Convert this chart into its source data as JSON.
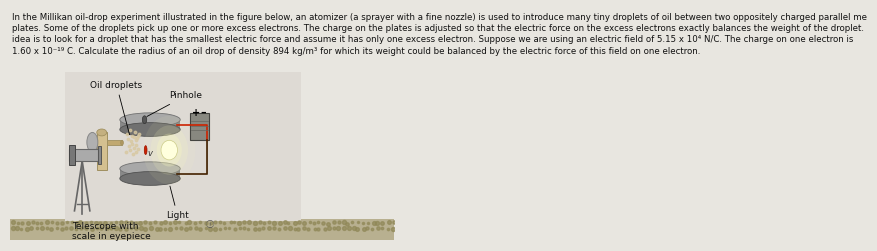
{
  "background_color": "#e8e6e0",
  "text_lines": [
    "In the Millikan oil-drop experiment illustrated in the figure below, an atomizer (a sprayer with a fine nozzle) is used to introduce many tiny droplets of oil between two oppositely charged parallel me",
    "plates. Some of the droplets pick up one or more excess electrons. The charge on the plates is adjusted so that the electric force on the excess electrons exactly balances the weight of the droplet.",
    "idea is to look for a droplet that has the smallest electric force and assume it has only one excess electron. Suppose we are using an electric field of 5.15 x 10⁴ N/C. The charge on one electron is",
    "1.60 x 10⁻¹⁹ C. Calculate the radius of an oil drop of density 894 kg/m³ for which its weight could be balanced by the electric force of this field on one electron."
  ],
  "label_oil_droplets": "Oil droplets",
  "label_pinhole": "Pinhole",
  "label_telescope": "Telescope with\nscale in eyepiece",
  "label_light": "Light",
  "text_color": "#111111",
  "font_size_text": 6.2,
  "font_size_label": 6.5,
  "fig_width": 7.0,
  "fig_height": 2.35,
  "plate_color_top": "#909090",
  "plate_color_mid": "#808080",
  "plate_color_rim": "#a0a0a0",
  "plate_color_dark": "#606060",
  "wire_red": "#cc2200",
  "wire_dark": "#442200",
  "bottom_strip_color": "#b8b090",
  "bottom_dot_color": "#908858"
}
